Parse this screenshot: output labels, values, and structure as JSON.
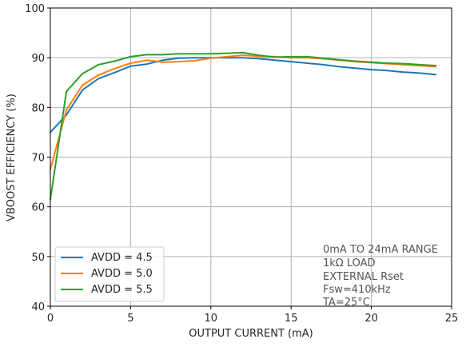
{
  "chart_data": {
    "type": "line",
    "xlabel": "OUTPUT CURRENT (mA)",
    "ylabel": "VBOOST EFFICIENCY (%)",
    "xlim": [
      0,
      25
    ],
    "ylim": [
      40,
      100
    ],
    "xticks": [
      0,
      5,
      10,
      15,
      20,
      25
    ],
    "yticks": [
      40,
      50,
      60,
      70,
      80,
      90,
      100
    ],
    "grid": true,
    "legend_position": "lower-left",
    "series": [
      {
        "name": "AVDD = 4.5",
        "color": "#1f77b4",
        "x": [
          0,
          1,
          2,
          3,
          4,
          5,
          6,
          7,
          8,
          9,
          10,
          11,
          12,
          13,
          14,
          15,
          16,
          17,
          18,
          19,
          20,
          21,
          22,
          23,
          24
        ],
        "y": [
          75,
          78.5,
          83.5,
          85.8,
          87.0,
          88.3,
          88.7,
          89.5,
          89.9,
          90.0,
          90.0,
          90.0,
          90.0,
          89.8,
          89.5,
          89.2,
          88.9,
          88.6,
          88.2,
          87.9,
          87.6,
          87.4,
          87.1,
          86.9,
          86.6
        ]
      },
      {
        "name": "AVDD = 5.0",
        "color": "#ff7f0e",
        "x": [
          0,
          1,
          2,
          3,
          4,
          5,
          6,
          7,
          8,
          9,
          10,
          11,
          12,
          13,
          14,
          15,
          16,
          17,
          18,
          19,
          20,
          21,
          22,
          23,
          24
        ],
        "y": [
          67.5,
          79.5,
          84.5,
          86.5,
          87.8,
          88.9,
          89.5,
          89.1,
          89.2,
          89.4,
          89.9,
          90.2,
          90.5,
          90.3,
          90.2,
          90.0,
          90.0,
          89.8,
          89.5,
          89.2,
          89.0,
          88.8,
          88.6,
          88.4,
          88.2
        ]
      },
      {
        "name": "AVDD = 5.5",
        "color": "#2ca02c",
        "x": [
          0,
          1,
          2,
          3,
          4,
          5,
          6,
          7,
          8,
          9,
          10,
          11,
          12,
          13,
          14,
          15,
          16,
          17,
          18,
          19,
          20,
          21,
          22,
          23,
          24
        ],
        "y": [
          61.5,
          83.2,
          86.8,
          88.6,
          89.3,
          90.2,
          90.6,
          90.6,
          90.8,
          90.8,
          90.8,
          90.9,
          91.0,
          90.5,
          90.1,
          90.2,
          90.2,
          89.9,
          89.6,
          89.3,
          89.1,
          88.9,
          88.8,
          88.6,
          88.4
        ]
      }
    ],
    "annotations": [
      "0mA TO 24mA RANGE",
      "1kΩ LOAD",
      "EXTERNAL Rset",
      "Fsw=410kHz",
      "TA=25°C"
    ]
  }
}
